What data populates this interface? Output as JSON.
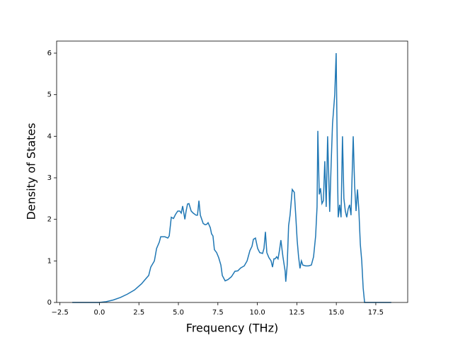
{
  "chart_data": {
    "type": "line",
    "xlabel": "Frequency (THz)",
    "ylabel": "Density of States",
    "x": [
      -1.72,
      -1.0,
      0.0,
      0.43,
      0.88,
      1.33,
      1.77,
      2.22,
      2.67,
      2.89,
      3.12,
      3.25,
      3.48,
      3.62,
      3.79,
      3.88,
      4.15,
      4.33,
      4.42,
      4.55,
      4.69,
      4.82,
      4.96,
      5.09,
      5.18,
      5.27,
      5.41,
      5.49,
      5.58,
      5.67,
      5.81,
      5.94,
      6.12,
      6.21,
      6.3,
      6.39,
      6.57,
      6.7,
      6.79,
      6.88,
      7.02,
      7.1,
      7.19,
      7.28,
      7.42,
      7.55,
      7.69,
      7.78,
      7.96,
      8.14,
      8.36,
      8.58,
      8.76,
      8.94,
      9.17,
      9.35,
      9.53,
      9.66,
      9.75,
      9.88,
      10.02,
      10.15,
      10.33,
      10.42,
      10.51,
      10.6,
      10.73,
      10.87,
      10.96,
      11.05,
      11.13,
      11.22,
      11.31,
      11.4,
      11.49,
      11.62,
      11.76,
      11.8,
      11.89,
      11.98,
      12.07,
      12.21,
      12.34,
      12.43,
      12.52,
      12.61,
      12.7,
      12.79,
      12.88,
      13.06,
      13.24,
      13.42,
      13.56,
      13.69,
      13.78,
      13.83,
      13.92,
      14.0,
      14.09,
      14.18,
      14.27,
      14.36,
      14.45,
      14.58,
      14.67,
      14.76,
      14.9,
      14.99,
      15.08,
      15.12,
      15.21,
      15.3,
      15.39,
      15.48,
      15.57,
      15.66,
      15.75,
      15.84,
      15.93,
      16.07,
      16.16,
      16.25,
      16.34,
      16.43,
      16.52,
      16.61,
      16.7,
      16.79,
      17.0,
      18.48
    ],
    "series": [
      {
        "color": "#1f77b4",
        "values": [
          0,
          0,
          0,
          0.02,
          0.06,
          0.12,
          0.2,
          0.3,
          0.45,
          0.55,
          0.65,
          0.85,
          1.0,
          1.3,
          1.45,
          1.58,
          1.58,
          1.55,
          1.6,
          2.05,
          2.02,
          2.12,
          2.2,
          2.2,
          2.15,
          2.32,
          2.0,
          2.2,
          2.37,
          2.38,
          2.2,
          2.15,
          2.1,
          2.1,
          2.45,
          2.1,
          1.9,
          1.87,
          1.88,
          1.92,
          1.8,
          1.65,
          1.6,
          1.27,
          1.2,
          1.08,
          0.9,
          0.65,
          0.52,
          0.55,
          0.62,
          0.75,
          0.76,
          0.83,
          0.88,
          1.0,
          1.25,
          1.35,
          1.52,
          1.55,
          1.3,
          1.2,
          1.18,
          1.3,
          1.7,
          1.2,
          1.08,
          1.0,
          0.85,
          1.05,
          1.05,
          1.1,
          1.05,
          1.25,
          1.5,
          1.1,
          0.75,
          0.5,
          0.9,
          1.85,
          2.1,
          2.72,
          2.65,
          2.1,
          1.5,
          1.1,
          0.82,
          1.0,
          0.9,
          0.88,
          0.88,
          0.9,
          1.1,
          1.6,
          2.3,
          4.13,
          2.6,
          2.75,
          2.38,
          2.45,
          3.4,
          2.3,
          4.0,
          2.18,
          3.3,
          4.3,
          5.0,
          6.0,
          3.0,
          2.05,
          2.35,
          2.05,
          4.0,
          2.5,
          2.2,
          2.05,
          2.25,
          2.35,
          2.1,
          4.0,
          2.8,
          2.2,
          2.72,
          2.2,
          1.4,
          1.0,
          0.35,
          0,
          0,
          0
        ]
      }
    ],
    "xlim": [
      -2.71,
      19.52
    ],
    "ylim": [
      0,
      6.29
    ],
    "xticks": [
      {
        "value": -2.5,
        "label": "−2.5"
      },
      {
        "value": 0,
        "label": "0.0"
      },
      2.5,
      {
        "value": 5,
        "label": "5.0"
      },
      7.5,
      {
        "value": 10,
        "label": "10.0"
      },
      12.5,
      {
        "value": 15,
        "label": "15.0"
      },
      17.5
    ],
    "yticks": [
      0,
      1,
      2,
      3,
      4,
      5,
      6
    ]
  }
}
